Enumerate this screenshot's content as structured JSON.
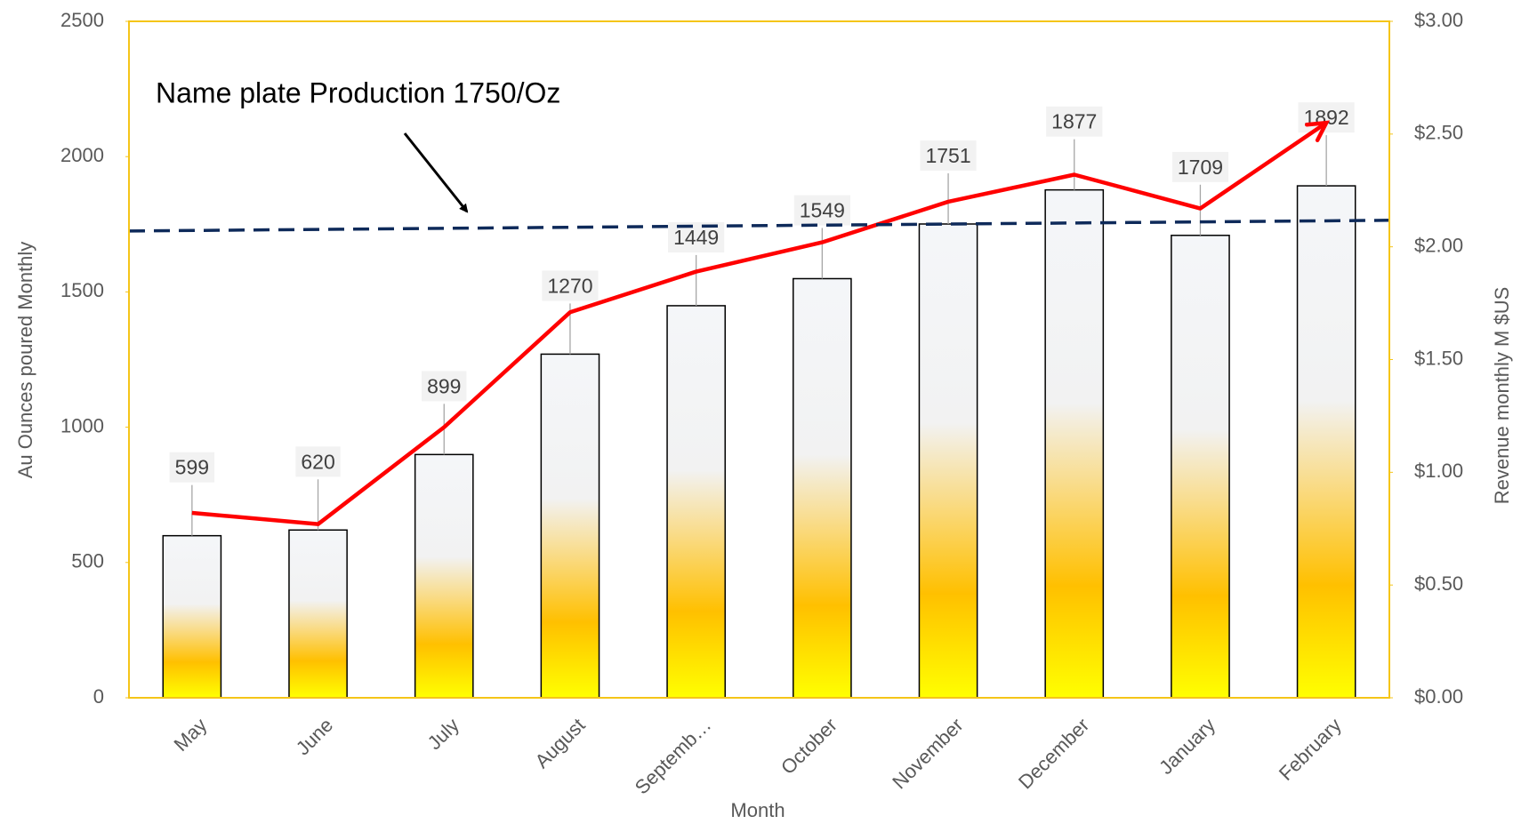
{
  "chart_data": {
    "type": "bar",
    "annotation": "Name plate Production 1750/Oz",
    "x_label": "Month",
    "y_label": "Au Ounces poured Monthly",
    "y2_label": "Revenue monthly M $US",
    "categories": [
      "May",
      "June",
      "July",
      "August",
      "Septemb…",
      "October",
      "November",
      "December",
      "January",
      "February"
    ],
    "series": [
      {
        "type": "bar",
        "values": [
          599,
          620,
          899,
          1270,
          1449,
          1549,
          1751,
          1877,
          1709,
          1892
        ],
        "color": "#ffc000"
      },
      {
        "type": "line",
        "axis": "y2",
        "color": "#ff0000",
        "values": [
          0.82,
          0.77,
          1.2,
          1.71,
          1.89,
          2.02,
          2.2,
          2.32,
          2.17,
          2.55
        ]
      }
    ],
    "nameplate_line": {
      "start": 1725,
      "end": 1765,
      "color": "#0e2a5a"
    },
    "ylim": [
      0,
      2500
    ],
    "yticks": [
      0,
      500,
      1000,
      1500,
      2000,
      2500
    ],
    "y2lim": [
      0,
      3
    ],
    "y2ticks": [
      {
        "value": 0,
        "label": "$0.00"
      },
      {
        "value": 0.5,
        "label": "$0.50"
      },
      {
        "value": 1,
        "label": "$1.00"
      },
      {
        "value": 1.5,
        "label": "$1.50"
      },
      {
        "value": 2,
        "label": "$2.00"
      },
      {
        "value": 2.5,
        "label": "$2.50"
      },
      {
        "value": 3,
        "label": "$3.00"
      }
    ],
    "frame_color": "#f5c518"
  }
}
